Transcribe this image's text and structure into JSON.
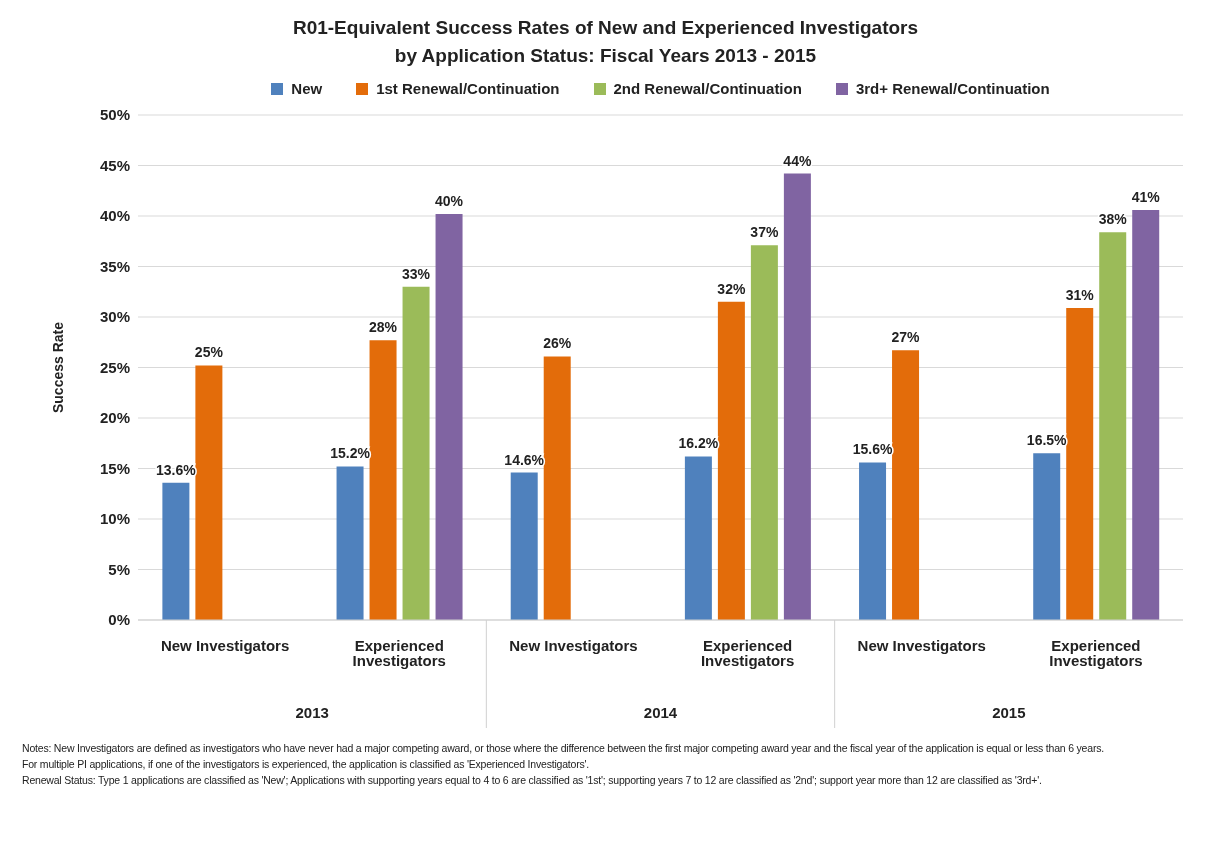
{
  "chart_data": {
    "type": "bar",
    "title": "R01-Equivalent Success Rates of New and Experienced Investigators\nby Application Status:  Fiscal Years 2013 - 2015",
    "ylabel": "Success Rate",
    "categories": [
      "New Investigators",
      "Experienced Investigators",
      "New Investigators",
      "Experienced Investigators",
      "New Investigators",
      "Experienced Investigators"
    ],
    "series": [
      {
        "name": "New",
        "color": "#4f81bd",
        "values": [
          13.6,
          15.2,
          14.6,
          16.2,
          15.6,
          16.5
        ],
        "value_labels": [
          "13.6%",
          "15.2%",
          "14.6%",
          "16.2%",
          "15.6%",
          "16.5%"
        ]
      },
      {
        "name": "1st Renewal/Continuation",
        "color": "#e36c0a",
        "values": [
          25.2,
          27.7,
          26.1,
          31.5,
          26.7,
          30.9
        ],
        "value_labels": [
          "25%",
          "28%",
          "26%",
          "32%",
          "27%",
          "31%"
        ]
      },
      {
        "name": "2nd Renewal/Continuation",
        "color": "#9bbb59",
        "values": [
          null,
          33,
          null,
          37.1,
          null,
          38.4
        ],
        "value_labels": [
          null,
          "33%",
          null,
          "37%",
          null,
          "38%"
        ]
      },
      {
        "name": "3rd+ Renewal/Continuation",
        "color": "#8064a2",
        "values": [
          null,
          40.2,
          null,
          44.2,
          null,
          40.6
        ],
        "value_labels": [
          null,
          "40%",
          null,
          "44%",
          null,
          "41%"
        ]
      }
    ],
    "ylim": [
      0,
      50
    ],
    "yticks": [
      {
        "value": 0,
        "label": "0%"
      },
      {
        "value": 5,
        "label": "5%"
      },
      {
        "value": 10,
        "label": "10%"
      },
      {
        "value": 15,
        "label": "15%"
      },
      {
        "value": 20,
        "label": "20%"
      },
      {
        "value": 25,
        "label": "25%"
      },
      {
        "value": 30,
        "label": "30%"
      },
      {
        "value": 35,
        "label": "35%"
      },
      {
        "value": 40,
        "label": "40%"
      },
      {
        "value": 45,
        "label": "45%"
      },
      {
        "value": 50,
        "label": "50%"
      }
    ],
    "grid": "y",
    "legend": "top",
    "annotations": [
      "2013",
      "2014",
      "2015",
      "Notes: New Investigators are defined as investigators who have never had a major competing award, or those where the difference between the first major competing award year and the fiscal year of the application is equal or less than 6 years.",
      "For multiple PI applications, if one of the investigators is experienced, the application is classified as 'Experienced Investigators'.",
      "Renewal Status:  Type 1 applications are classified as 'New'; Applications with supporting years equal to 4 to 6 are classified as '1st'; supporting years 7 to 12 are classified as '2nd'; support year more than 12 are classified as '3rd+'."
    ]
  }
}
